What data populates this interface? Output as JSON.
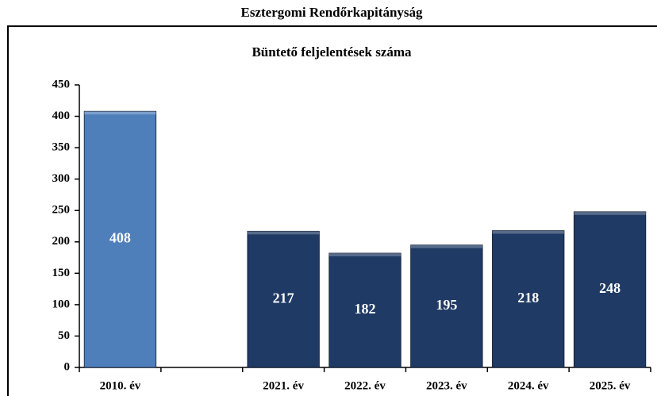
{
  "chart_data": {
    "type": "bar",
    "title": "Esztergomi Rendőrkapitányság",
    "subtitle": "Büntető feljelentések száma",
    "categories": [
      "2010. év",
      null,
      "2021. év",
      "2022. év",
      "2023. év",
      "2024. év",
      "2025. év"
    ],
    "values": [
      408,
      null,
      217,
      182,
      195,
      218,
      248
    ],
    "colors": [
      "#4f7fba",
      null,
      "#1f3a64",
      "#1f3a64",
      "#1f3a64",
      "#1f3a64",
      "#1f3a64"
    ],
    "ylim": [
      0,
      450
    ],
    "yticks": [
      0,
      50,
      100,
      150,
      200,
      250,
      300,
      350,
      400,
      450
    ],
    "grid": false
  }
}
